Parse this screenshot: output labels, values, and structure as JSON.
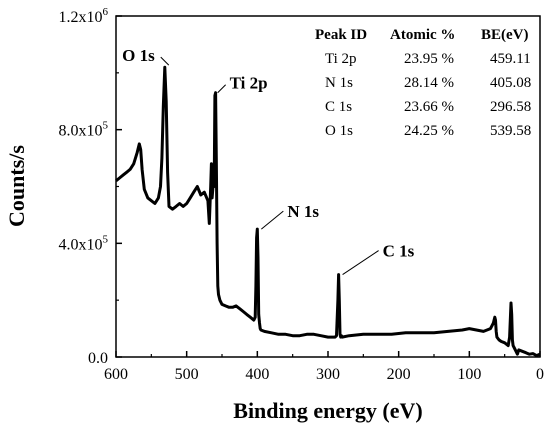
{
  "chart_data": {
    "type": "line",
    "title": "",
    "xlabel": "Binding energy (eV)",
    "ylabel": "Counts/s",
    "xlim": [
      600,
      0
    ],
    "ylim": [
      0,
      1200000
    ],
    "x_reversed": true,
    "x_ticks": [
      600,
      500,
      400,
      300,
      200,
      100,
      0
    ],
    "x_tick_labels": [
      "600",
      "500",
      "400",
      "300",
      "200",
      "100",
      "0"
    ],
    "y_ticks": [
      0,
      400000,
      800000,
      1200000
    ],
    "y_tick_labels": [
      {
        "base": "0.0",
        "exp": ""
      },
      {
        "base": "4.0x10",
        "exp": "5"
      },
      {
        "base": "8.0x10",
        "exp": "5"
      },
      {
        "base": "1.2x10",
        "exp": "6"
      }
    ],
    "series": [
      {
        "color": "#000000",
        "x": [
          600,
          595,
          590,
          585,
          580,
          575,
          570,
          567,
          565,
          563,
          560,
          555,
          550,
          545,
          540,
          537,
          535,
          533,
          531,
          529,
          527,
          525,
          520,
          515,
          510,
          505,
          500,
          495,
          490,
          485,
          480,
          475,
          470,
          468,
          466,
          465,
          464,
          462,
          461,
          460,
          459,
          458,
          457,
          456,
          455,
          453,
          450,
          445,
          440,
          435,
          430,
          425,
          420,
          415,
          410,
          405,
          403,
          402,
          401,
          400,
          399,
          398,
          397,
          396,
          395,
          390,
          380,
          370,
          360,
          350,
          340,
          330,
          320,
          310,
          300,
          290,
          288,
          286,
          285,
          284,
          283,
          282,
          281,
          280,
          270,
          250,
          230,
          210,
          190,
          170,
          150,
          130,
          110,
          100,
          90,
          80,
          70,
          66,
          64,
          63,
          62,
          61,
          58,
          55,
          50,
          45,
          43,
          41,
          40,
          39,
          38,
          36,
          34,
          32,
          30,
          25,
          20,
          15,
          10,
          5,
          0
        ],
        "y": [
          620000,
          630000,
          640000,
          650000,
          660000,
          680000,
          720000,
          750000,
          730000,
          660000,
          590000,
          560000,
          550000,
          540000,
          560000,
          600000,
          700000,
          880000,
          1020000,
          900000,
          650000,
          530000,
          520000,
          530000,
          540000,
          530000,
          540000,
          560000,
          580000,
          600000,
          570000,
          580000,
          550000,
          470000,
          600000,
          680000,
          560000,
          620000,
          600000,
          920000,
          930000,
          700000,
          400000,
          250000,
          220000,
          200000,
          185000,
          180000,
          175000,
          175000,
          180000,
          170000,
          160000,
          150000,
          140000,
          130000,
          140000,
          250000,
          420000,
          450000,
          350000,
          150000,
          120000,
          100000,
          95000,
          90000,
          85000,
          80000,
          80000,
          75000,
          75000,
          80000,
          80000,
          75000,
          70000,
          70000,
          75000,
          200000,
          290000,
          200000,
          80000,
          70000,
          75000,
          70000,
          75000,
          80000,
          80000,
          80000,
          85000,
          85000,
          85000,
          90000,
          95000,
          100000,
          95000,
          90000,
          100000,
          120000,
          140000,
          130000,
          90000,
          70000,
          60000,
          55000,
          50000,
          40000,
          70000,
          190000,
          150000,
          60000,
          40000,
          30000,
          20000,
          10000,
          25000,
          20000,
          15000,
          10000,
          12000,
          5000,
          10000
        ]
      }
    ],
    "annotations": [
      {
        "text": "O 1s",
        "x": 531,
        "y": 1020000
      },
      {
        "text": "Ti 2p",
        "x": 459,
        "y": 930000
      },
      {
        "text": "N 1s",
        "x": 400,
        "y": 450000
      },
      {
        "text": "C 1s",
        "x": 285,
        "y": 290000
      }
    ],
    "table": {
      "headers": [
        "Peak ID",
        "Atomic %",
        "BE(eV)"
      ],
      "rows": [
        [
          "Ti 2p",
          "23.95 %",
          "459.11"
        ],
        [
          "N 1s",
          "28.14 %",
          "405.08"
        ],
        [
          "C 1s",
          "23.66 %",
          "296.58"
        ],
        [
          "O 1s",
          "24.25 %",
          "539.58"
        ]
      ]
    }
  }
}
